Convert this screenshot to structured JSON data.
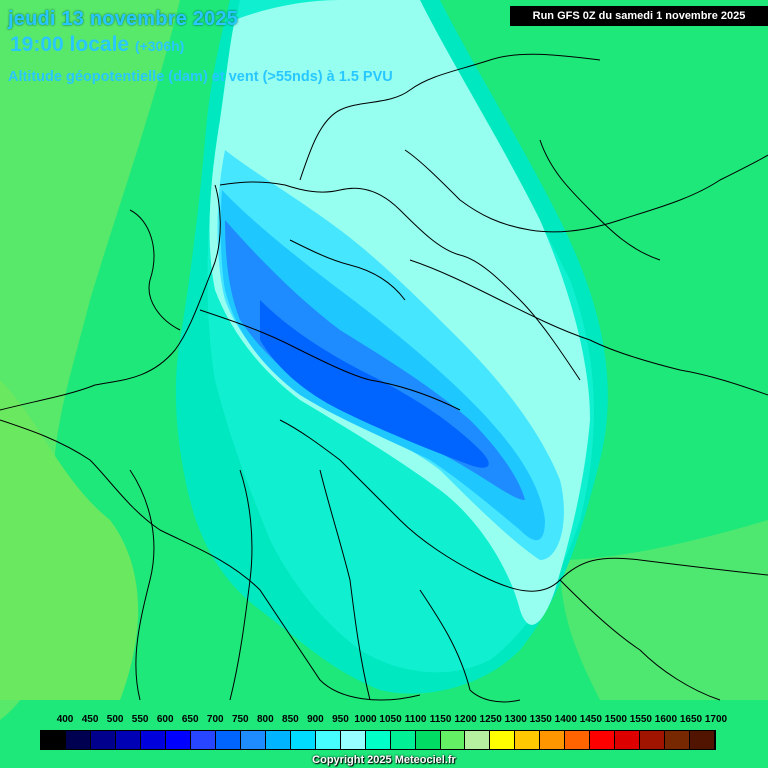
{
  "header": {
    "date_line": "jeudi 13 novembre 2025",
    "time_line": "19:00 locale",
    "time_offset": "(+306h)",
    "parameter": "Altitude géopotentielle (dam) et vent (>55nds) à 1.5 PVU",
    "run_info": "Run GFS 0Z du samedi 1 novembre 2025"
  },
  "legend": {
    "labels": [
      "400",
      "450",
      "500",
      "550",
      "600",
      "650",
      "700",
      "750",
      "800",
      "850",
      "900",
      "950",
      "1000",
      "1050",
      "1100",
      "1150",
      "1200",
      "1250",
      "1300",
      "1350",
      "1400",
      "1450",
      "1500",
      "1550",
      "1600",
      "1650",
      "1700"
    ],
    "colors": [
      "#000000",
      "#000050",
      "#00008c",
      "#0000b4",
      "#0000dc",
      "#0000ff",
      "#2846ff",
      "#0064ff",
      "#1e8cff",
      "#00b4ff",
      "#00dcff",
      "#46ffff",
      "#96ffff",
      "#00ffc8",
      "#00f096",
      "#00dc64",
      "#64f064",
      "#b4f0a0",
      "#ffff00",
      "#ffc800",
      "#ff9600",
      "#ff6400",
      "#ff0000",
      "#dc0000",
      "#a01400",
      "#782800",
      "#501400"
    ]
  },
  "footer": {
    "copyright": "Copyright 2025 Meteociel.fr"
  }
}
